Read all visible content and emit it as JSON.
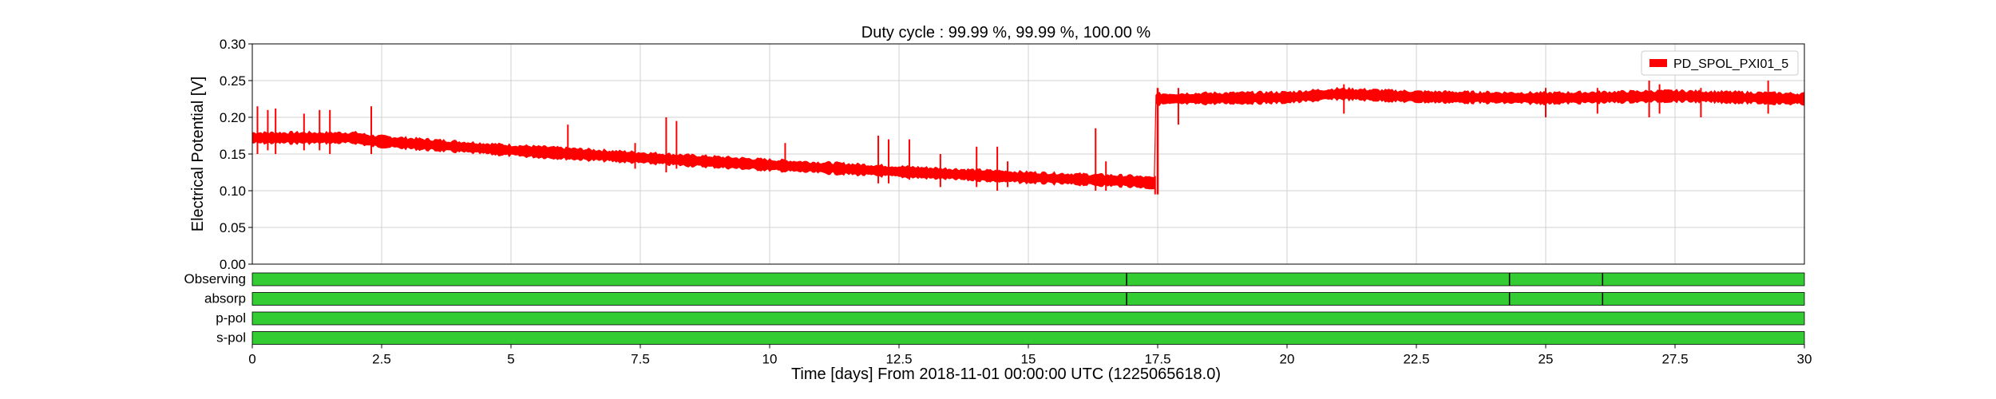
{
  "chart_data": {
    "type": "line",
    "title": "Duty cycle : 99.99 %, 99.99 %, 100.00 %",
    "xlabel": "Time [days] From 2018-11-01 00:00:00 UTC (1225065618.0)",
    "ylabel": "Electrical Potential [V]",
    "xlim": [
      0,
      30
    ],
    "ylim": [
      0,
      0.3
    ],
    "x_ticks": [
      "0",
      "2.5",
      "5",
      "7.5",
      "10",
      "12.5",
      "15",
      "17.5",
      "20",
      "22.5",
      "25",
      "27.5",
      "30"
    ],
    "y_ticks": [
      "0.00",
      "0.05",
      "0.10",
      "0.15",
      "0.20",
      "0.25",
      "0.30"
    ],
    "grid": true,
    "legend_position": "top-right",
    "series": [
      {
        "name": "PD_SPOL_PXI01_5",
        "color": "#ff0000",
        "band_halfwidth": 0.007,
        "x": [
          0,
          1,
          2,
          2.3,
          2.5,
          5,
          7.5,
          10,
          12.5,
          15,
          17,
          17.45,
          17.55,
          20,
          21,
          22.5,
          25,
          27.5,
          30
        ],
        "y": [
          0.172,
          0.172,
          0.172,
          0.168,
          0.167,
          0.155,
          0.145,
          0.135,
          0.126,
          0.118,
          0.113,
          0.11,
          0.225,
          0.227,
          0.232,
          0.228,
          0.226,
          0.229,
          0.225
        ]
      }
    ],
    "spikes": [
      {
        "x": 0.1,
        "lo": 0.15,
        "hi": 0.215
      },
      {
        "x": 0.3,
        "lo": 0.155,
        "hi": 0.21
      },
      {
        "x": 0.45,
        "lo": 0.15,
        "hi": 0.212
      },
      {
        "x": 1.0,
        "lo": 0.155,
        "hi": 0.205
      },
      {
        "x": 1.3,
        "lo": 0.155,
        "hi": 0.21
      },
      {
        "x": 1.5,
        "lo": 0.15,
        "hi": 0.21
      },
      {
        "x": 2.3,
        "lo": 0.15,
        "hi": 0.215
      },
      {
        "x": 6.1,
        "lo": 0.145,
        "hi": 0.19
      },
      {
        "x": 7.4,
        "lo": 0.13,
        "hi": 0.165
      },
      {
        "x": 8.0,
        "lo": 0.125,
        "hi": 0.2
      },
      {
        "x": 8.2,
        "lo": 0.13,
        "hi": 0.195
      },
      {
        "x": 10.3,
        "lo": 0.125,
        "hi": 0.165
      },
      {
        "x": 12.1,
        "lo": 0.11,
        "hi": 0.175
      },
      {
        "x": 12.3,
        "lo": 0.11,
        "hi": 0.17
      },
      {
        "x": 12.7,
        "lo": 0.115,
        "hi": 0.17
      },
      {
        "x": 13.3,
        "lo": 0.105,
        "hi": 0.15
      },
      {
        "x": 14.0,
        "lo": 0.105,
        "hi": 0.16
      },
      {
        "x": 14.4,
        "lo": 0.1,
        "hi": 0.16
      },
      {
        "x": 14.6,
        "lo": 0.105,
        "hi": 0.14
      },
      {
        "x": 16.3,
        "lo": 0.1,
        "hi": 0.185
      },
      {
        "x": 16.5,
        "lo": 0.1,
        "hi": 0.14
      },
      {
        "x": 17.45,
        "lo": 0.095,
        "hi": 0.12
      },
      {
        "x": 17.9,
        "lo": 0.19,
        "hi": 0.24
      },
      {
        "x": 21.1,
        "lo": 0.205,
        "hi": 0.245
      },
      {
        "x": 25.0,
        "lo": 0.2,
        "hi": 0.24
      },
      {
        "x": 26.0,
        "lo": 0.205,
        "hi": 0.24
      },
      {
        "x": 27.0,
        "lo": 0.2,
        "hi": 0.25
      },
      {
        "x": 27.2,
        "lo": 0.205,
        "hi": 0.245
      },
      {
        "x": 28.0,
        "lo": 0.2,
        "hi": 0.24
      },
      {
        "x": 29.3,
        "lo": 0.205,
        "hi": 0.25
      }
    ],
    "state_rows": [
      {
        "label": "Observing",
        "color": "#33cc33",
        "gaps": [
          16.9,
          24.3,
          26.1
        ]
      },
      {
        "label": "absorp",
        "color": "#33cc33",
        "gaps": [
          16.9,
          24.3,
          26.1
        ]
      },
      {
        "label": "p-pol",
        "color": "#33cc33",
        "gaps": []
      },
      {
        "label": "s-pol",
        "color": "#33cc33",
        "gaps": []
      }
    ]
  }
}
